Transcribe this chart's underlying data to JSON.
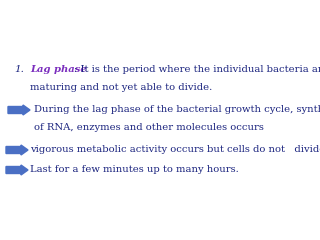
{
  "background_color": "#ffffff",
  "title_number": "1.",
  "title_label": "Lag phase",
  "title_label_color": "#7b2fbe",
  "title_rest": ": It is the period where the individual bacteria are",
  "title_rest2": "maturing and not yet able to divide.",
  "bullet1_line1": "During the lag phase of the bacterial growth cycle, synthesis",
  "bullet1_line2": "of RNA, enzymes and other molecules occurs",
  "bullet2_line1": "vigorous metabolic activity occurs but cells do not   divide.",
  "bullet3_line1": "Last for a few minutes up to many hours.",
  "text_color": "#1a237e",
  "arrow_color": "#4a6fc4",
  "font_size": 7.2,
  "number_font_size": 7.5
}
